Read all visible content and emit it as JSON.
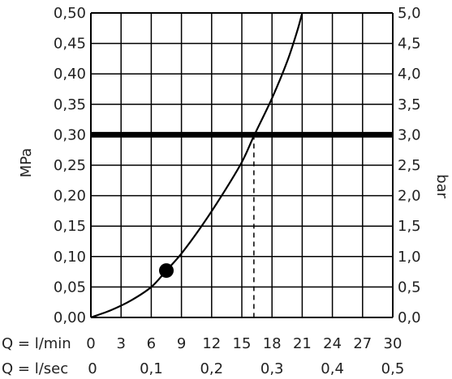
{
  "chart_data": {
    "type": "line",
    "x_units": "l/min",
    "left_axis": {
      "label": "MPa",
      "range": [
        0,
        0.5
      ],
      "ticks": [
        "0,00",
        "0,05",
        "0,10",
        "0,15",
        "0,20",
        "0,25",
        "0,30",
        "0,35",
        "0,40",
        "0,45",
        "0,50"
      ]
    },
    "right_axis": {
      "label": "bar",
      "range": [
        0,
        5
      ],
      "ticks": [
        "0,0",
        "0,5",
        "1,0",
        "1,5",
        "2,0",
        "2,5",
        "3,0",
        "3,5",
        "4,0",
        "4,5",
        "5,0"
      ]
    },
    "x_axis_lmin": {
      "label": "Q = l/min",
      "range": [
        0,
        30
      ],
      "ticks": [
        "0",
        "3",
        "6",
        "9",
        "12",
        "15",
        "18",
        "21",
        "24",
        "27",
        "30"
      ]
    },
    "x_axis_lsec": {
      "label": "Q = l/sec",
      "ticks": [
        "0",
        "0,1",
        "0,2",
        "0,3",
        "0,4",
        "0,5"
      ]
    },
    "grid": true,
    "series": [
      {
        "x": [
          0,
          2,
          4,
          6,
          7.5,
          9,
          11,
          13,
          15,
          16.2,
          18,
          19.5,
          20.5,
          21
        ],
        "y": [
          0,
          0.012,
          0.028,
          0.05,
          0.077,
          0.105,
          0.15,
          0.2,
          0.255,
          0.298,
          0.36,
          0.42,
          0.47,
          0.5
        ]
      }
    ],
    "reference_line": {
      "y": 0.3
    },
    "marker": {
      "x": 7.5,
      "y": 0.077
    },
    "intersection": {
      "x": 16.2,
      "y": 0.3
    }
  }
}
